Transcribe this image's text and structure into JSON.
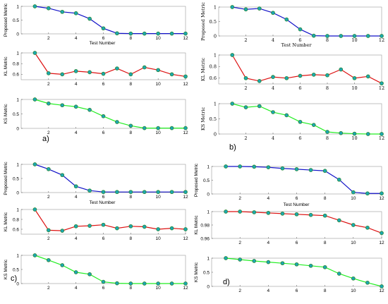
{
  "colors": {
    "proposed": "#1111c8",
    "kl": "#dd1111",
    "ks": "#22ee22",
    "marker": "#1aa7b4",
    "marker_edge": "#2f8a3a"
  },
  "panel_labels": [
    "a)",
    "b)",
    "c)",
    "d)"
  ],
  "chart_data": [
    {
      "panel": "a)",
      "type": "line",
      "xlabel": "Test Number",
      "subplots": [
        {
          "ylabel": "Proposed Metric",
          "ylim": [
            0,
            1
          ],
          "yticks": [
            "0",
            "0.5",
            "1"
          ],
          "x": [
            1,
            2,
            3,
            4,
            5,
            6,
            7,
            8,
            9,
            10,
            11,
            12
          ],
          "values": [
            1,
            0.93,
            0.8,
            0.75,
            0.55,
            0.2,
            0.02,
            0.01,
            0.01,
            0.01,
            0.01,
            0.01
          ]
        },
        {
          "ylabel": "KL Metric",
          "ylim": [
            0.5,
            1
          ],
          "yticks": [
            "0.6",
            "0.8",
            "1"
          ],
          "x": [
            1,
            2,
            3,
            4,
            5,
            6,
            7,
            8,
            9,
            10,
            11,
            12
          ],
          "values": [
            1,
            0.62,
            0.6,
            0.66,
            0.64,
            0.61,
            0.71,
            0.6,
            0.73,
            0.68,
            0.6,
            0.56
          ]
        },
        {
          "ylabel": "KS Metric",
          "ylim": [
            0,
            1
          ],
          "yticks": [
            "0",
            "0.5",
            "1"
          ],
          "x": [
            1,
            2,
            3,
            4,
            5,
            6,
            7,
            8,
            9,
            10,
            11,
            12
          ],
          "values": [
            1,
            0.86,
            0.8,
            0.75,
            0.64,
            0.42,
            0.22,
            0.09,
            0.01,
            0.01,
            0.01,
            0.01
          ]
        }
      ]
    },
    {
      "panel": "b)",
      "type": "line",
      "xlabel": "Test Number",
      "subplots": [
        {
          "ylabel": "Proposed Metric",
          "ylim": [
            0,
            1
          ],
          "yticks": [
            "0",
            "0.5",
            "1"
          ],
          "x": [
            1,
            2,
            3,
            4,
            5,
            6,
            7,
            8,
            9,
            10,
            11,
            12
          ],
          "values": [
            1,
            0.92,
            0.95,
            0.8,
            0.57,
            0.23,
            0.01,
            0.0,
            0.0,
            0.0,
            0.0,
            0.0
          ]
        },
        {
          "ylabel": "KL Metric",
          "ylim": [
            0.5,
            1
          ],
          "yticks": [
            "0.6",
            "0.8",
            "1"
          ],
          "x": [
            1,
            2,
            3,
            4,
            5,
            6,
            7,
            8,
            9,
            10,
            11,
            12
          ],
          "values": [
            1,
            0.6,
            0.55,
            0.62,
            0.6,
            0.64,
            0.66,
            0.65,
            0.75,
            0.6,
            0.63,
            0.51
          ]
        },
        {
          "ylabel": "KS Metric",
          "ylim": [
            0,
            1
          ],
          "yticks": [
            "0",
            "0.5",
            "1"
          ],
          "x": [
            1,
            2,
            3,
            4,
            5,
            6,
            7,
            8,
            9,
            10,
            11,
            12
          ],
          "values": [
            1,
            0.88,
            0.92,
            0.72,
            0.62,
            0.4,
            0.3,
            0.07,
            0.03,
            0.01,
            0.0,
            0.0
          ]
        }
      ]
    },
    {
      "panel": "c)",
      "type": "line",
      "xlabel": "Test Number",
      "subplots": [
        {
          "ylabel": "Proposed Metric",
          "ylim": [
            0,
            1
          ],
          "yticks": [
            "0",
            "0.5",
            "1"
          ],
          "x": [
            1,
            2,
            3,
            4,
            5,
            6,
            7,
            8,
            9,
            10,
            11,
            12
          ],
          "values": [
            1,
            0.83,
            0.62,
            0.22,
            0.07,
            0.02,
            0.02,
            0.02,
            0.02,
            0.02,
            0.02,
            0.02
          ]
        },
        {
          "ylabel": "KL Metric",
          "ylim": [
            0.5,
            1
          ],
          "yticks": [
            "0.6",
            "0.8",
            "1"
          ],
          "x": [
            1,
            2,
            3,
            4,
            5,
            6,
            7,
            8,
            9,
            10,
            11,
            12
          ],
          "values": [
            1,
            0.58,
            0.57,
            0.66,
            0.67,
            0.69,
            0.62,
            0.66,
            0.65,
            0.6,
            0.62,
            0.6
          ]
        },
        {
          "ylabel": "KS Metric",
          "ylim": [
            0,
            1
          ],
          "yticks": [
            "0",
            "0.5",
            "1"
          ],
          "x": [
            1,
            2,
            3,
            4,
            5,
            6,
            7,
            8,
            9,
            10,
            11,
            12
          ],
          "values": [
            1,
            0.83,
            0.65,
            0.4,
            0.33,
            0.06,
            0.01,
            0.0,
            0.0,
            0.0,
            0.0,
            0.0
          ]
        }
      ]
    },
    {
      "panel": "d)",
      "type": "line",
      "xlabel": "Test Number",
      "subplots": [
        {
          "ylabel": "Proposed Metric",
          "ylim": [
            0,
            1
          ],
          "yticks": [
            "0",
            "0.5",
            "1"
          ],
          "x": [
            1,
            2,
            3,
            4,
            5,
            6,
            7,
            8,
            9,
            10,
            11,
            12
          ],
          "values": [
            1,
            1,
            0.99,
            0.97,
            0.93,
            0.9,
            0.87,
            0.84,
            0.52,
            0.06,
            0.02,
            0.02
          ]
        },
        {
          "ylabel": "KL Metric",
          "ylim": [
            0.96,
            1
          ],
          "yticks": [
            "0.96",
            "0.98",
            "1"
          ],
          "x": [
            1,
            2,
            3,
            4,
            5,
            6,
            7,
            8,
            9,
            10,
            11,
            12
          ],
          "values": [
            1,
            1,
            0.999,
            0.998,
            0.997,
            0.996,
            0.995,
            0.994,
            0.987,
            0.98,
            0.976,
            0.968
          ]
        },
        {
          "ylabel": "KS Metric",
          "ylim": [
            0,
            1
          ],
          "yticks": [
            "0",
            "0.5",
            "1"
          ],
          "x": [
            1,
            2,
            3,
            4,
            5,
            6,
            7,
            8,
            9,
            10,
            11,
            12
          ],
          "values": [
            1,
            0.95,
            0.9,
            0.86,
            0.82,
            0.78,
            0.73,
            0.68,
            0.45,
            0.28,
            0.13,
            0.0
          ]
        }
      ]
    }
  ]
}
